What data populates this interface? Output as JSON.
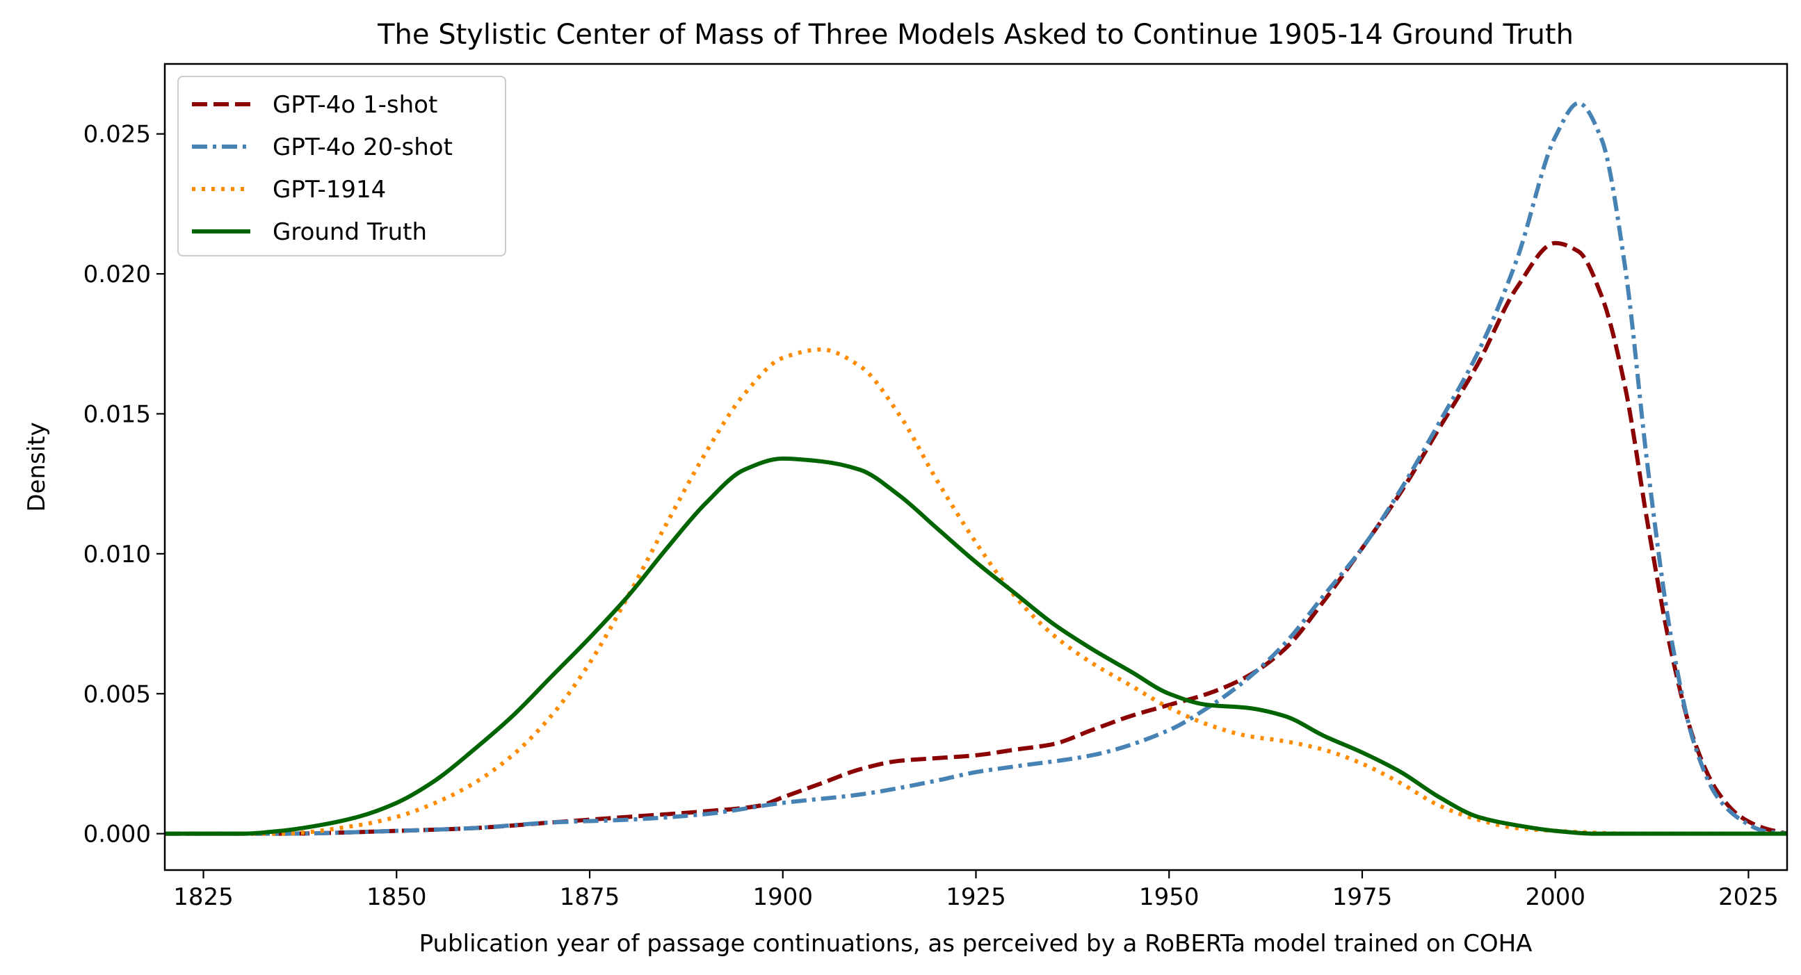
{
  "chart_data": {
    "type": "line",
    "title": "The Stylistic Center of Mass of Three Models Asked to Continue 1905-14 Ground Truth",
    "xlabel": "Publication year of passage continuations, as perceived by a RoBERTa model trained on COHA",
    "ylabel": "Density",
    "xlim": [
      1820,
      2030
    ],
    "ylim": [
      -0.0013,
      0.0275
    ],
    "xticks": [
      1825,
      1850,
      1875,
      1900,
      1925,
      1950,
      1975,
      2000,
      2025
    ],
    "xtick_labels": [
      "1825",
      "1850",
      "1875",
      "1900",
      "1925",
      "1950",
      "1975",
      "2000",
      "2025"
    ],
    "yticks": [
      0.0,
      0.005,
      0.01,
      0.015,
      0.02,
      0.025
    ],
    "ytick_labels": [
      "0.000",
      "0.005",
      "0.010",
      "0.015",
      "0.020",
      "0.025"
    ],
    "grid": false,
    "legend": "top-left",
    "series": [
      {
        "name": "GPT-4o 1-shot",
        "color": "#8b0000",
        "style": "dashed",
        "x": [
          1820,
          1835,
          1850,
          1860,
          1870,
          1880,
          1890,
          1897,
          1900,
          1905,
          1910,
          1915,
          1920,
          1925,
          1930,
          1935,
          1940,
          1945,
          1950,
          1955,
          1960,
          1965,
          1970,
          1975,
          1980,
          1985,
          1990,
          1995,
          2000,
          2003,
          2006,
          2009,
          2012,
          2015,
          2018,
          2021,
          2024,
          2027,
          2030
        ],
        "y": [
          0.0,
          0.0,
          0.0001,
          0.0002,
          0.0004,
          0.0006,
          0.0008,
          0.001,
          0.0013,
          0.0018,
          0.0023,
          0.0026,
          0.0027,
          0.0028,
          0.003,
          0.0032,
          0.0037,
          0.0042,
          0.0046,
          0.005,
          0.0056,
          0.0066,
          0.0083,
          0.0102,
          0.0122,
          0.0145,
          0.0168,
          0.0195,
          0.0211,
          0.0208,
          0.0192,
          0.016,
          0.011,
          0.0065,
          0.0033,
          0.0015,
          0.0006,
          0.0002,
          0.0
        ]
      },
      {
        "name": "GPT-4o 20-shot",
        "color": "#4682b4",
        "style": "dashdot",
        "x": [
          1820,
          1835,
          1850,
          1860,
          1870,
          1880,
          1890,
          1900,
          1910,
          1920,
          1925,
          1930,
          1940,
          1950,
          1955,
          1960,
          1965,
          1970,
          1975,
          1980,
          1985,
          1990,
          1995,
          2000,
          2003,
          2006,
          2009,
          2012,
          2015,
          2018,
          2021,
          2024,
          2027,
          2030
        ],
        "y": [
          0.0,
          0.0,
          0.0001,
          0.0002,
          0.0004,
          0.0005,
          0.0007,
          0.0011,
          0.0014,
          0.0019,
          0.0022,
          0.0024,
          0.0028,
          0.0037,
          0.0045,
          0.0055,
          0.0068,
          0.0085,
          0.0102,
          0.0123,
          0.0147,
          0.0172,
          0.0205,
          0.0249,
          0.0261,
          0.0248,
          0.0203,
          0.013,
          0.007,
          0.0032,
          0.0013,
          0.0005,
          0.0001,
          0.0
        ]
      },
      {
        "name": "GPT-1914",
        "color": "#ff8c00",
        "style": "dotted",
        "x": [
          1820,
          1835,
          1845,
          1850,
          1855,
          1860,
          1865,
          1870,
          1875,
          1880,
          1885,
          1890,
          1895,
          1900,
          1905,
          1910,
          1915,
          1920,
          1925,
          1930,
          1935,
          1940,
          1945,
          1950,
          1955,
          1960,
          1965,
          1970,
          1975,
          1980,
          1985,
          1990,
          1995,
          2000,
          2010,
          2020,
          2030
        ],
        "y": [
          0.0,
          0.0,
          0.0003,
          0.0006,
          0.0011,
          0.0018,
          0.0028,
          0.0042,
          0.0061,
          0.0085,
          0.0111,
          0.0136,
          0.0157,
          0.017,
          0.0173,
          0.0167,
          0.015,
          0.0126,
          0.0104,
          0.0085,
          0.0071,
          0.0061,
          0.0053,
          0.0045,
          0.0039,
          0.0035,
          0.0033,
          0.003,
          0.0025,
          0.0018,
          0.001,
          0.0005,
          0.0002,
          0.0001,
          0.0,
          0.0,
          0.0
        ]
      },
      {
        "name": "Ground Truth",
        "color": "#006400",
        "style": "solid",
        "x": [
          1820,
          1830,
          1835,
          1840,
          1845,
          1850,
          1855,
          1860,
          1865,
          1870,
          1875,
          1880,
          1885,
          1890,
          1895,
          1900,
          1905,
          1910,
          1915,
          1920,
          1925,
          1930,
          1935,
          1940,
          1945,
          1950,
          1955,
          1960,
          1965,
          1970,
          1975,
          1980,
          1985,
          1990,
          1995,
          2000,
          2005,
          2010,
          2020,
          2030
        ],
        "y": [
          0.0,
          0.0,
          0.0001,
          0.0003,
          0.0006,
          0.0011,
          0.0019,
          0.003,
          0.0042,
          0.0056,
          0.007,
          0.0085,
          0.0102,
          0.0118,
          0.013,
          0.0134,
          0.0133,
          0.013,
          0.0121,
          0.0109,
          0.0097,
          0.0086,
          0.0075,
          0.0066,
          0.0058,
          0.005,
          0.0046,
          0.0045,
          0.0042,
          0.0035,
          0.0029,
          0.0022,
          0.0013,
          0.0006,
          0.0003,
          0.0001,
          0.0,
          0.0,
          0.0,
          0.0
        ]
      }
    ]
  }
}
